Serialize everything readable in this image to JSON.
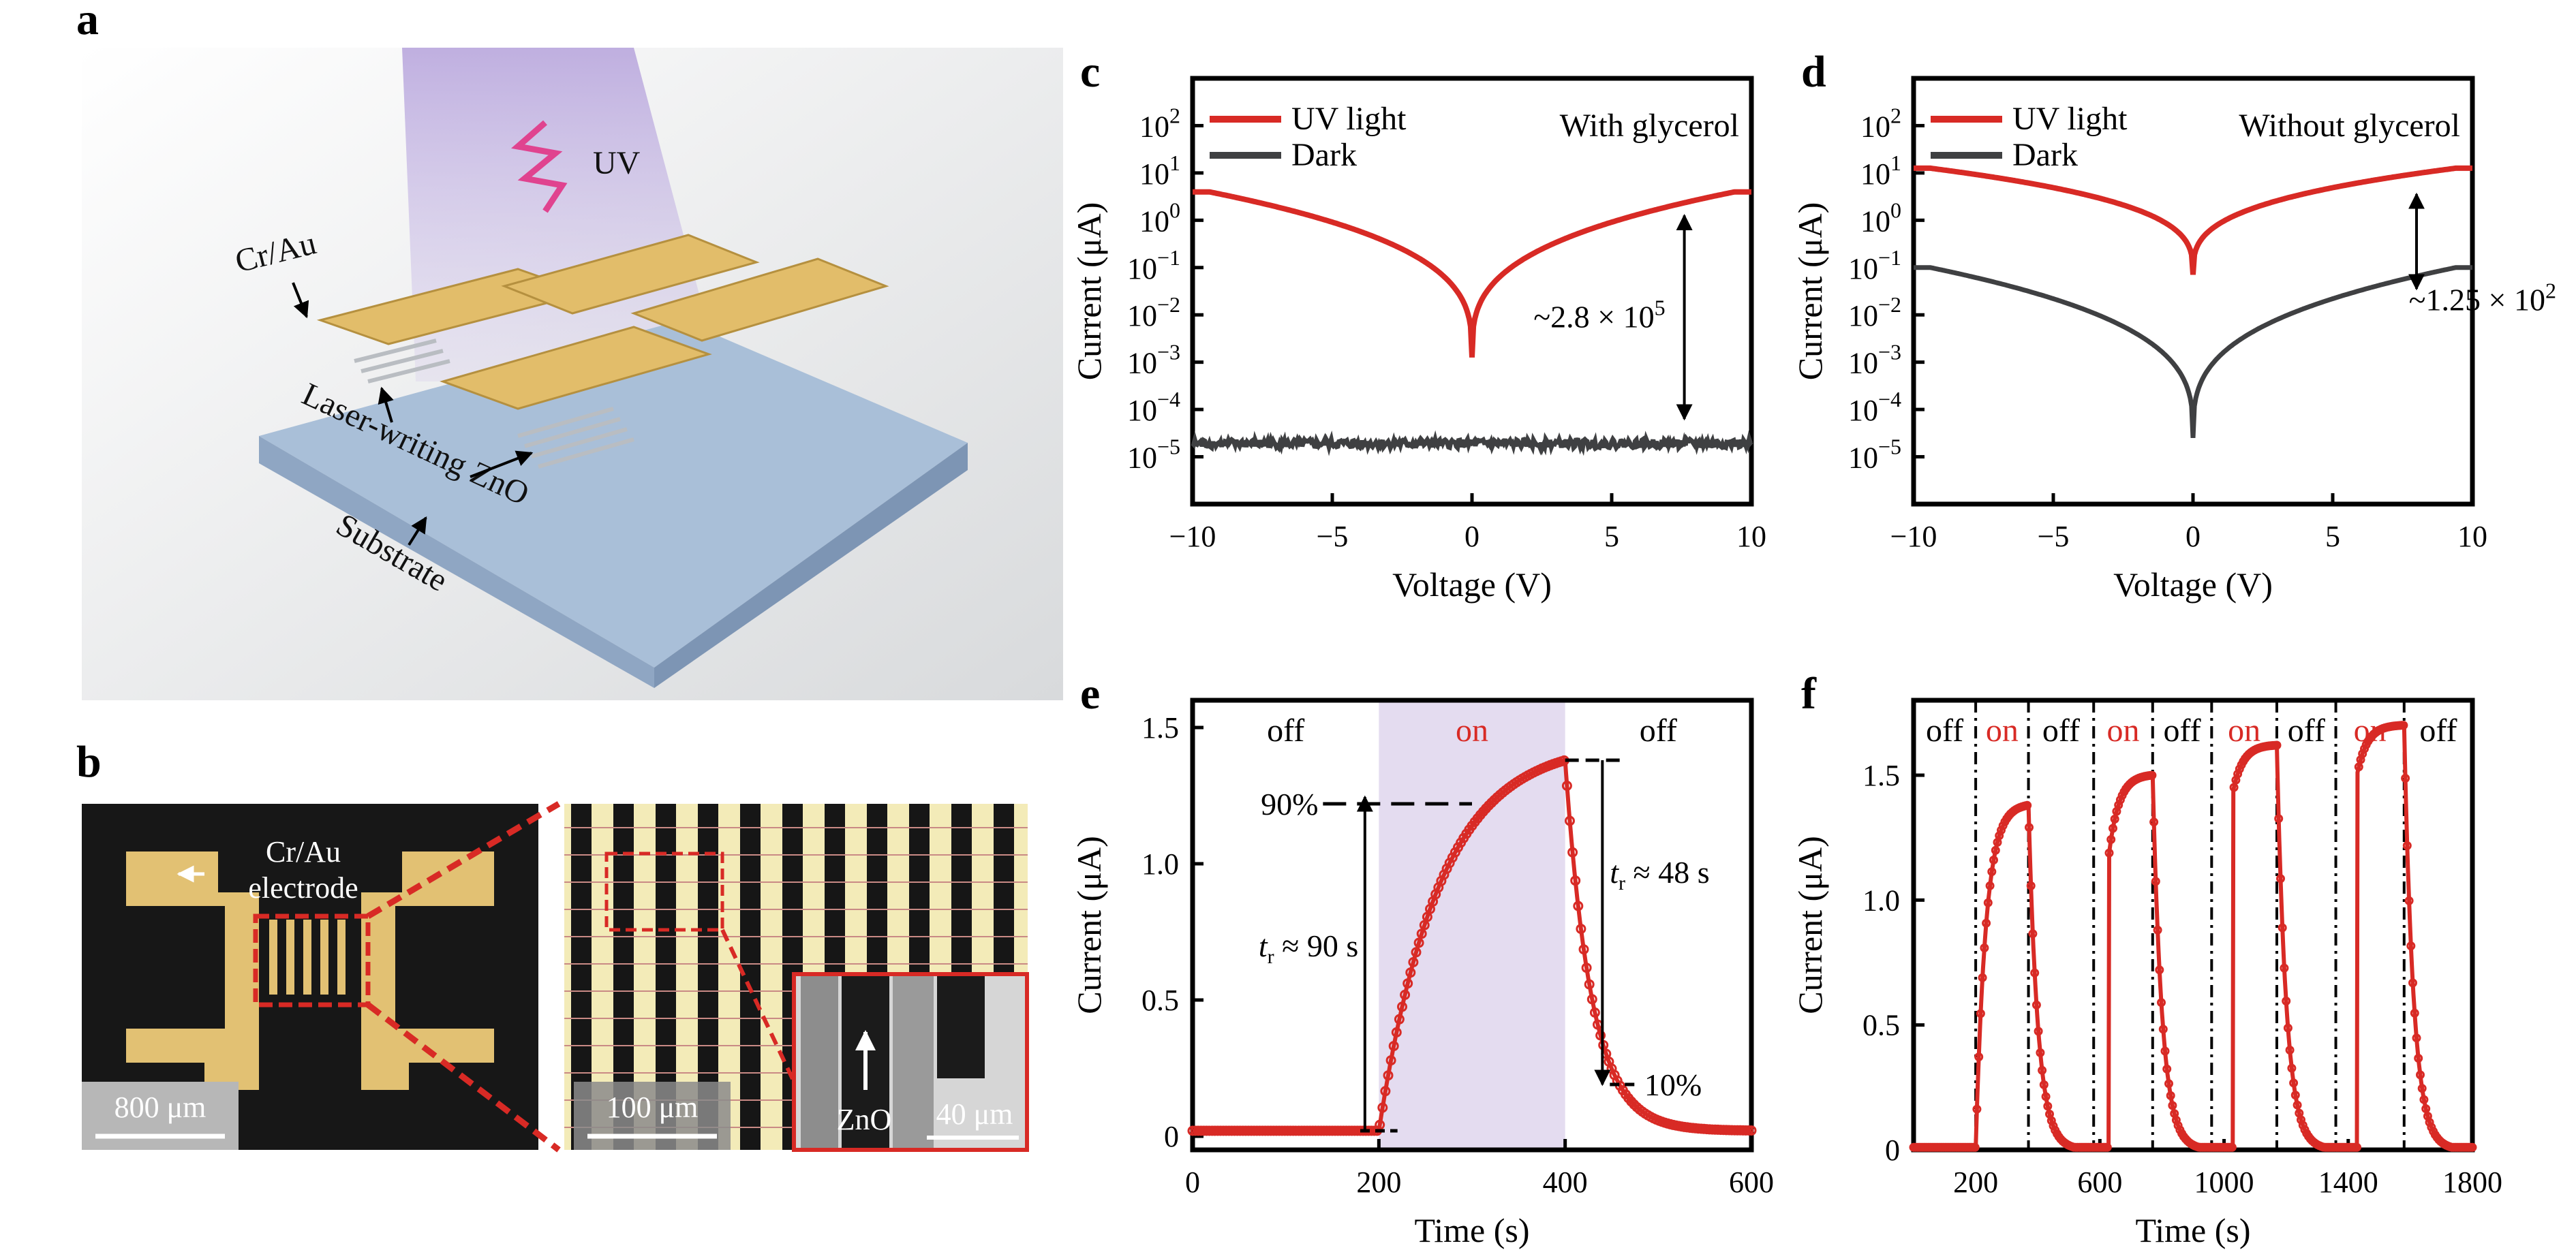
{
  "colors": {
    "uv": "#d82a25",
    "dark": "#3f4042",
    "on_shade": "#e4dcf0",
    "gold": "#e2bd6a",
    "substrate": "#a7bcd4"
  },
  "panels": {
    "a": {
      "letter": "a",
      "labels": {
        "uv": "UV",
        "cr_au": "Cr/Au",
        "zno": "Laser-writing ZnO",
        "substrate": "Substrate"
      }
    },
    "b": {
      "letter": "b",
      "electrode_l1": "Cr/Au",
      "electrode_l2": "electrode",
      "zno": "ZnO",
      "scale1": "800 μm",
      "scale2": "100 μm",
      "scale3": "40 μm"
    }
  },
  "chart_data": [
    {
      "id": "c",
      "letter": "c",
      "type": "line",
      "xlabel": "Voltage (V)",
      "ylabel": "Current (μA)",
      "xlim": [
        -10,
        10
      ],
      "ylim": [
        -6,
        3
      ],
      "yscale": "log",
      "xticks": [
        "−10",
        "−5",
        "0",
        "5",
        "10"
      ],
      "ytick_values": [
        -5,
        -4,
        -3,
        -2,
        -1,
        0,
        1,
        2
      ],
      "legend": [
        "UV light",
        "Dark"
      ],
      "condition": "With glycerol",
      "ratio_label": "~2.8 × 10",
      "ratio_exp": "5",
      "series": [
        {
          "name": "UV light",
          "min_log": -2.9,
          "edge_log": 0.6,
          "curve": "v"
        },
        {
          "name": "Dark",
          "level_log": -4.72,
          "noise": 0.09
        }
      ],
      "arrow_x": 7.6,
      "arrow_logs": [
        0.1,
        -4.2
      ]
    },
    {
      "id": "d",
      "letter": "d",
      "type": "line",
      "xlabel": "Voltage (V)",
      "ylabel": "Current (μA)",
      "xlim": [
        -10,
        10
      ],
      "ylim": [
        -6,
        3
      ],
      "yscale": "log",
      "xticks": [
        "−10",
        "−5",
        "0",
        "5",
        "10"
      ],
      "ytick_values": [
        -5,
        -4,
        -3,
        -2,
        -1,
        0,
        1,
        2
      ],
      "legend": [
        "UV light",
        "Dark"
      ],
      "condition": "Without glycerol",
      "ratio_label": "~1.25 × 10",
      "ratio_exp": "2",
      "series": [
        {
          "name": "UV light",
          "min_log": -1.15,
          "edge_log": 1.1,
          "curve": "v"
        },
        {
          "name": "Dark",
          "min_log": -4.6,
          "edge_log": -1.0,
          "curve": "v"
        }
      ],
      "arrow_x": 8.0,
      "arrow_logs": [
        0.55,
        -1.45
      ]
    },
    {
      "id": "e",
      "letter": "e",
      "type": "line",
      "xlabel": "Time (s)",
      "ylabel": "Current (μA)",
      "xlim": [
        0,
        600
      ],
      "ylim": [
        -0.05,
        1.6
      ],
      "xticks": [
        0,
        200,
        400,
        600
      ],
      "yticks": [
        0,
        0.5,
        1.0,
        1.5
      ],
      "ytick_labels": [
        "0",
        "0.5",
        "1.0",
        "1.5"
      ],
      "phases": [
        {
          "label": "off",
          "x0": 0,
          "x1": 200,
          "on": false
        },
        {
          "label": "on",
          "x0": 200,
          "x1": 400,
          "on": true
        },
        {
          "label": "off",
          "x0": 400,
          "x1": 600,
          "on": false
        }
      ],
      "baseline": 0.02,
      "peak": 1.38,
      "rise_tau": 65,
      "fall_tau": 28,
      "level_90": "90%",
      "level_10": "10%",
      "rise_label": "t",
      "rise_sub": "r",
      "rise_rest": " ≈ 90 s",
      "fall_label": "t",
      "fall_sub": "r",
      "fall_rest": " ≈ 48 s"
    },
    {
      "id": "f",
      "letter": "f",
      "type": "line",
      "xlabel": "Time (s)",
      "ylabel": "Current (μA)",
      "xlim": [
        0,
        1800
      ],
      "ylim": [
        0,
        1.8
      ],
      "xticks": [
        200,
        600,
        1000,
        1400,
        1800
      ],
      "yticks": [
        0,
        0.5,
        1.0,
        1.5
      ],
      "ytick_labels": [
        "0",
        "0.5",
        "1.0",
        "1.5"
      ],
      "cycles": [
        {
          "on_start": 200,
          "on_end": 370,
          "peak": 1.38
        },
        {
          "on_start": 580,
          "on_end": 770,
          "peak": 1.5
        },
        {
          "on_start": 960,
          "on_end": 1170,
          "peak": 1.62
        },
        {
          "on_start": 1360,
          "on_end": 1580,
          "peak": 1.7
        }
      ],
      "phase_labels": [
        "off",
        "on",
        "off",
        "on",
        "off",
        "on",
        "off",
        "on",
        "off"
      ]
    }
  ]
}
